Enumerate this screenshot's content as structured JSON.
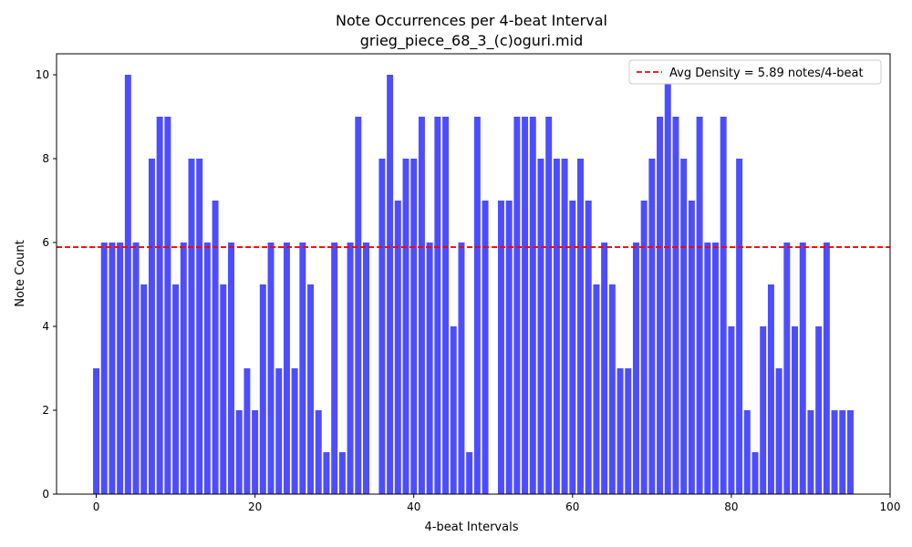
{
  "chart_data": {
    "type": "bar",
    "title": "Note Occurrences per 4-beat Interval",
    "subtitle": "grieg_piece_68_3_(c)oguri.mid",
    "xlabel": "4-beat Intervals",
    "ylabel": "Note Count",
    "xlim": [
      -5,
      100
    ],
    "ylim": [
      0,
      10.5
    ],
    "xticks": [
      0,
      20,
      40,
      60,
      80,
      100
    ],
    "yticks": [
      0,
      2,
      4,
      6,
      8,
      10
    ],
    "bar_color": "#4d4dff",
    "x": [
      0,
      1,
      2,
      3,
      4,
      5,
      6,
      7,
      8,
      9,
      10,
      11,
      12,
      13,
      14,
      15,
      16,
      17,
      18,
      19,
      20,
      21,
      22,
      23,
      24,
      25,
      26,
      27,
      28,
      29,
      30,
      31,
      32,
      33,
      34,
      35,
      36,
      37,
      38,
      39,
      40,
      41,
      42,
      43,
      44,
      45,
      46,
      47,
      48,
      49,
      50,
      51,
      52,
      53,
      54,
      55,
      56,
      57,
      58,
      59,
      60,
      61,
      62,
      63,
      64,
      65,
      66,
      67,
      68,
      69,
      70,
      71,
      72,
      73,
      74,
      75,
      76,
      77,
      78,
      79,
      80,
      81,
      82,
      83,
      84,
      85,
      86,
      87,
      88,
      89,
      90,
      91,
      92,
      93,
      94,
      95
    ],
    "values": [
      3,
      6,
      6,
      6,
      10,
      6,
      5,
      8,
      9,
      9,
      5,
      6,
      8,
      8,
      6,
      7,
      5,
      6,
      2,
      3,
      2,
      5,
      6,
      3,
      6,
      3,
      6,
      5,
      2,
      1,
      6,
      1,
      6,
      9,
      6,
      0,
      8,
      10,
      7,
      8,
      8,
      9,
      6,
      9,
      9,
      4,
      6,
      1,
      9,
      7,
      0,
      7,
      7,
      9,
      9,
      9,
      8,
      9,
      8,
      8,
      7,
      8,
      7,
      5,
      6,
      5,
      3,
      3,
      6,
      7,
      8,
      9,
      10,
      9,
      8,
      7,
      9,
      6,
      6,
      9,
      4,
      8,
      2,
      1,
      4,
      5,
      3,
      6,
      4,
      6,
      2,
      4,
      6,
      2,
      2,
      2
    ],
    "reference_line": {
      "value": 5.89,
      "style": "dashed",
      "color": "#ff0000",
      "label": "Avg Density = 5.89 notes/4-beat"
    },
    "legend_position": "top-right",
    "grid": false
  }
}
